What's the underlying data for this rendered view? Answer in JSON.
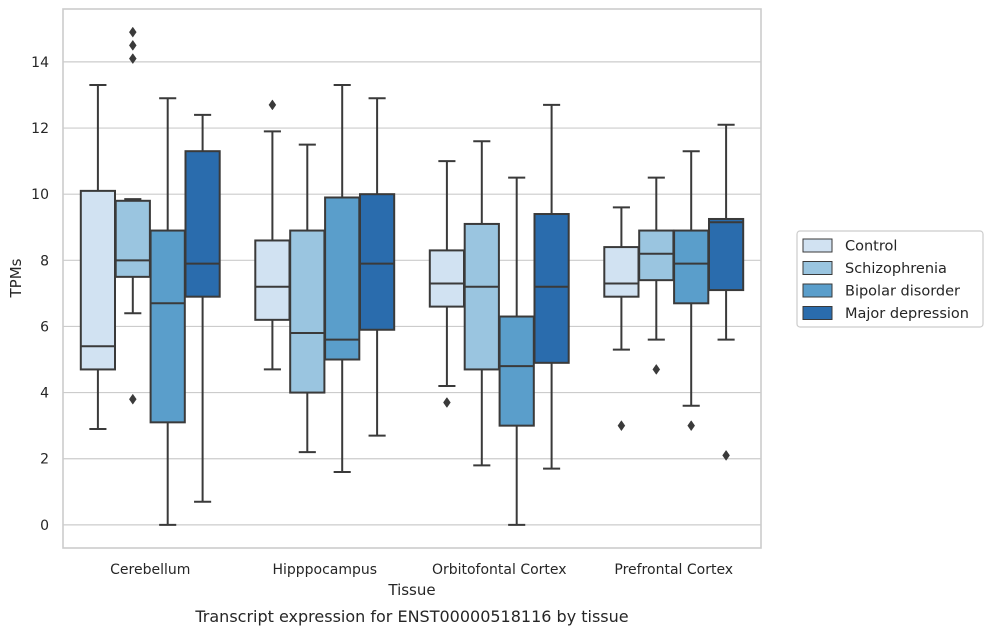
{
  "chart_data": {
    "type": "box",
    "title": "",
    "caption": "Transcript expression for ENST00000518116 by tissue",
    "xlabel": "Tissue",
    "ylabel": "TPMs",
    "ylim": [
      -0.7,
      15.6
    ],
    "yticks": [
      0,
      2,
      4,
      6,
      8,
      10,
      12,
      14
    ],
    "grid": "horizontal",
    "legend_position": "right",
    "categories": [
      "Cerebellum",
      "Hipppocampus",
      "Orbitofontal Cortex",
      "Prefrontal Cortex"
    ],
    "series": [
      {
        "name": "Control",
        "color": "#d1e2f2",
        "boxes": [
          {
            "whislo": 2.9,
            "q1": 4.7,
            "med": 5.4,
            "q3": 10.1,
            "whishi": 13.3,
            "fliers": []
          },
          {
            "whislo": 4.7,
            "q1": 6.2,
            "med": 7.2,
            "q3": 8.6,
            "whishi": 11.9,
            "fliers": [
              12.7
            ]
          },
          {
            "whislo": 4.2,
            "q1": 6.6,
            "med": 7.3,
            "q3": 8.3,
            "whishi": 11.0,
            "fliers": [
              3.7
            ]
          },
          {
            "whislo": 5.3,
            "q1": 6.9,
            "med": 7.3,
            "q3": 8.4,
            "whishi": 9.6,
            "fliers": [
              3.0
            ]
          }
        ]
      },
      {
        "name": "Schizophrenia",
        "color": "#9ac5e0",
        "boxes": [
          {
            "whislo": 6.4,
            "q1": 7.5,
            "med": 8.0,
            "q3": 9.8,
            "whishi": 9.85,
            "fliers": [
              3.8,
              14.1,
              14.5,
              14.9
            ]
          },
          {
            "whislo": 2.2,
            "q1": 4.0,
            "med": 5.8,
            "q3": 8.9,
            "whishi": 11.5,
            "fliers": []
          },
          {
            "whislo": 1.8,
            "q1": 4.7,
            "med": 7.2,
            "q3": 9.1,
            "whishi": 11.6,
            "fliers": []
          },
          {
            "whislo": 5.6,
            "q1": 7.4,
            "med": 8.2,
            "q3": 8.9,
            "whishi": 10.5,
            "fliers": [
              4.7
            ]
          }
        ]
      },
      {
        "name": "Bipolar disorder",
        "color": "#5a9ecb",
        "boxes": [
          {
            "whislo": 0.0,
            "q1": 3.1,
            "med": 6.7,
            "q3": 8.9,
            "whishi": 12.9,
            "fliers": []
          },
          {
            "whislo": 1.6,
            "q1": 5.0,
            "med": 5.6,
            "q3": 9.9,
            "whishi": 13.3,
            "fliers": []
          },
          {
            "whislo": 0.0,
            "q1": 3.0,
            "med": 4.8,
            "q3": 6.3,
            "whishi": 10.5,
            "fliers": []
          },
          {
            "whislo": 3.6,
            "q1": 6.7,
            "med": 7.9,
            "q3": 8.9,
            "whishi": 11.3,
            "fliers": [
              3.0
            ]
          }
        ]
      },
      {
        "name": "Major depression",
        "color": "#2a6cad",
        "boxes": [
          {
            "whislo": 0.7,
            "q1": 6.9,
            "med": 7.9,
            "q3": 11.3,
            "whishi": 12.4,
            "fliers": []
          },
          {
            "whislo": 2.7,
            "q1": 5.9,
            "med": 7.9,
            "q3": 10.0,
            "whishi": 12.9,
            "fliers": []
          },
          {
            "whislo": 1.7,
            "q1": 4.9,
            "med": 7.2,
            "q3": 9.4,
            "whishi": 12.7,
            "fliers": []
          },
          {
            "whislo": 5.6,
            "q1": 7.1,
            "med": 9.15,
            "q3": 9.25,
            "whishi": 12.1,
            "fliers": [
              2.1
            ]
          }
        ]
      }
    ]
  }
}
